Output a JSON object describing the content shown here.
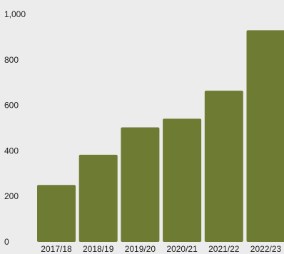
{
  "chart_data": {
    "type": "bar",
    "categories": [
      "2017/18",
      "2018/19",
      "2019/20",
      "2020/21",
      "2021/22",
      "2022/23"
    ],
    "values": [
      250,
      383,
      503,
      541,
      664,
      930
    ],
    "y_ticks": [
      0,
      200,
      400,
      600,
      800,
      1000
    ],
    "y_tick_labels": [
      "0",
      "200",
      "400",
      "600",
      "800",
      "1,000"
    ],
    "ylim": [
      0,
      1000
    ],
    "title": "",
    "xlabel": "",
    "ylabel": "",
    "grid": false,
    "legend": "none",
    "colors": {
      "bar": "#6e7b33",
      "background": "#ececec",
      "text": "#222222"
    }
  }
}
